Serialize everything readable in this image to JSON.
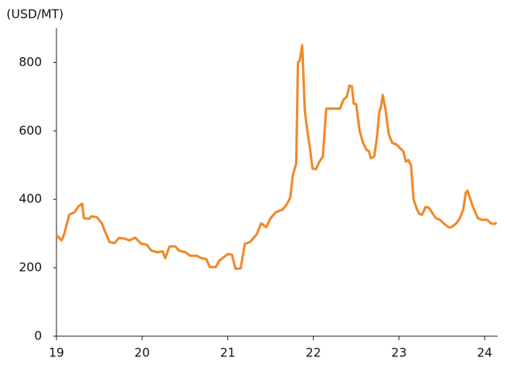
{
  "chart_data": {
    "type": "line",
    "y_label": "(USD/MT)",
    "color": "#f0892a",
    "x": [
      19.0,
      19.06,
      19.09,
      19.15,
      19.21,
      19.26,
      19.3,
      19.32,
      19.38,
      19.41,
      19.47,
      19.53,
      19.56,
      19.62,
      19.68,
      19.73,
      19.8,
      19.85,
      19.92,
      19.99,
      20.05,
      20.11,
      20.18,
      20.24,
      20.27,
      20.32,
      20.39,
      20.43,
      20.51,
      20.56,
      20.64,
      20.69,
      20.75,
      20.79,
      20.86,
      20.9,
      20.96,
      21.0,
      21.05,
      21.09,
      21.15,
      21.2,
      21.26,
      21.34,
      21.39,
      21.45,
      21.5,
      21.56,
      21.64,
      21.69,
      21.73,
      21.76,
      21.8,
      21.82,
      21.84,
      21.87,
      21.9,
      21.93,
      21.96,
      21.99,
      22.03,
      22.07,
      22.11,
      22.15,
      22.22,
      22.31,
      22.35,
      22.39,
      22.42,
      22.45,
      22.47,
      22.5,
      22.54,
      22.58,
      22.62,
      22.65,
      22.67,
      22.71,
      22.74,
      22.77,
      22.79,
      22.81,
      22.84,
      22.88,
      22.92,
      22.97,
      23.01,
      23.05,
      23.08,
      23.11,
      23.14,
      23.17,
      23.21,
      23.24,
      23.27,
      23.31,
      23.35,
      23.43,
      23.48,
      23.52,
      23.58,
      23.61,
      23.67,
      23.71,
      23.75,
      23.78,
      23.8,
      23.86,
      23.92,
      23.97,
      24.03,
      24.07,
      24.11,
      24.14
    ],
    "values": [
      295,
      280,
      298,
      355,
      362,
      380,
      387,
      345,
      343,
      350,
      348,
      330,
      310,
      275,
      272,
      287,
      285,
      280,
      288,
      270,
      268,
      250,
      245,
      248,
      228,
      262,
      262,
      250,
      245,
      235,
      235,
      228,
      225,
      202,
      202,
      220,
      232,
      240,
      238,
      197,
      198,
      270,
      275,
      298,
      330,
      318,
      345,
      362,
      370,
      385,
      405,
      470,
      505,
      800,
      805,
      850,
      660,
      600,
      550,
      490,
      488,
      510,
      525,
      665,
      665,
      665,
      690,
      700,
      732,
      730,
      680,
      678,
      600,
      565,
      545,
      540,
      520,
      525,
      575,
      655,
      670,
      705,
      665,
      590,
      565,
      560,
      550,
      540,
      510,
      515,
      500,
      400,
      370,
      357,
      355,
      378,
      375,
      345,
      340,
      330,
      318,
      318,
      330,
      345,
      370,
      420,
      425,
      380,
      345,
      340,
      340,
      330,
      328,
      332
    ],
    "xlim": [
      19,
      24.15
    ],
    "xticks": [
      19,
      20,
      21,
      22,
      23,
      24
    ],
    "ylim": [
      0,
      900
    ],
    "yticks": [
      0,
      200,
      400,
      600,
      800
    ],
    "grid": false
  }
}
